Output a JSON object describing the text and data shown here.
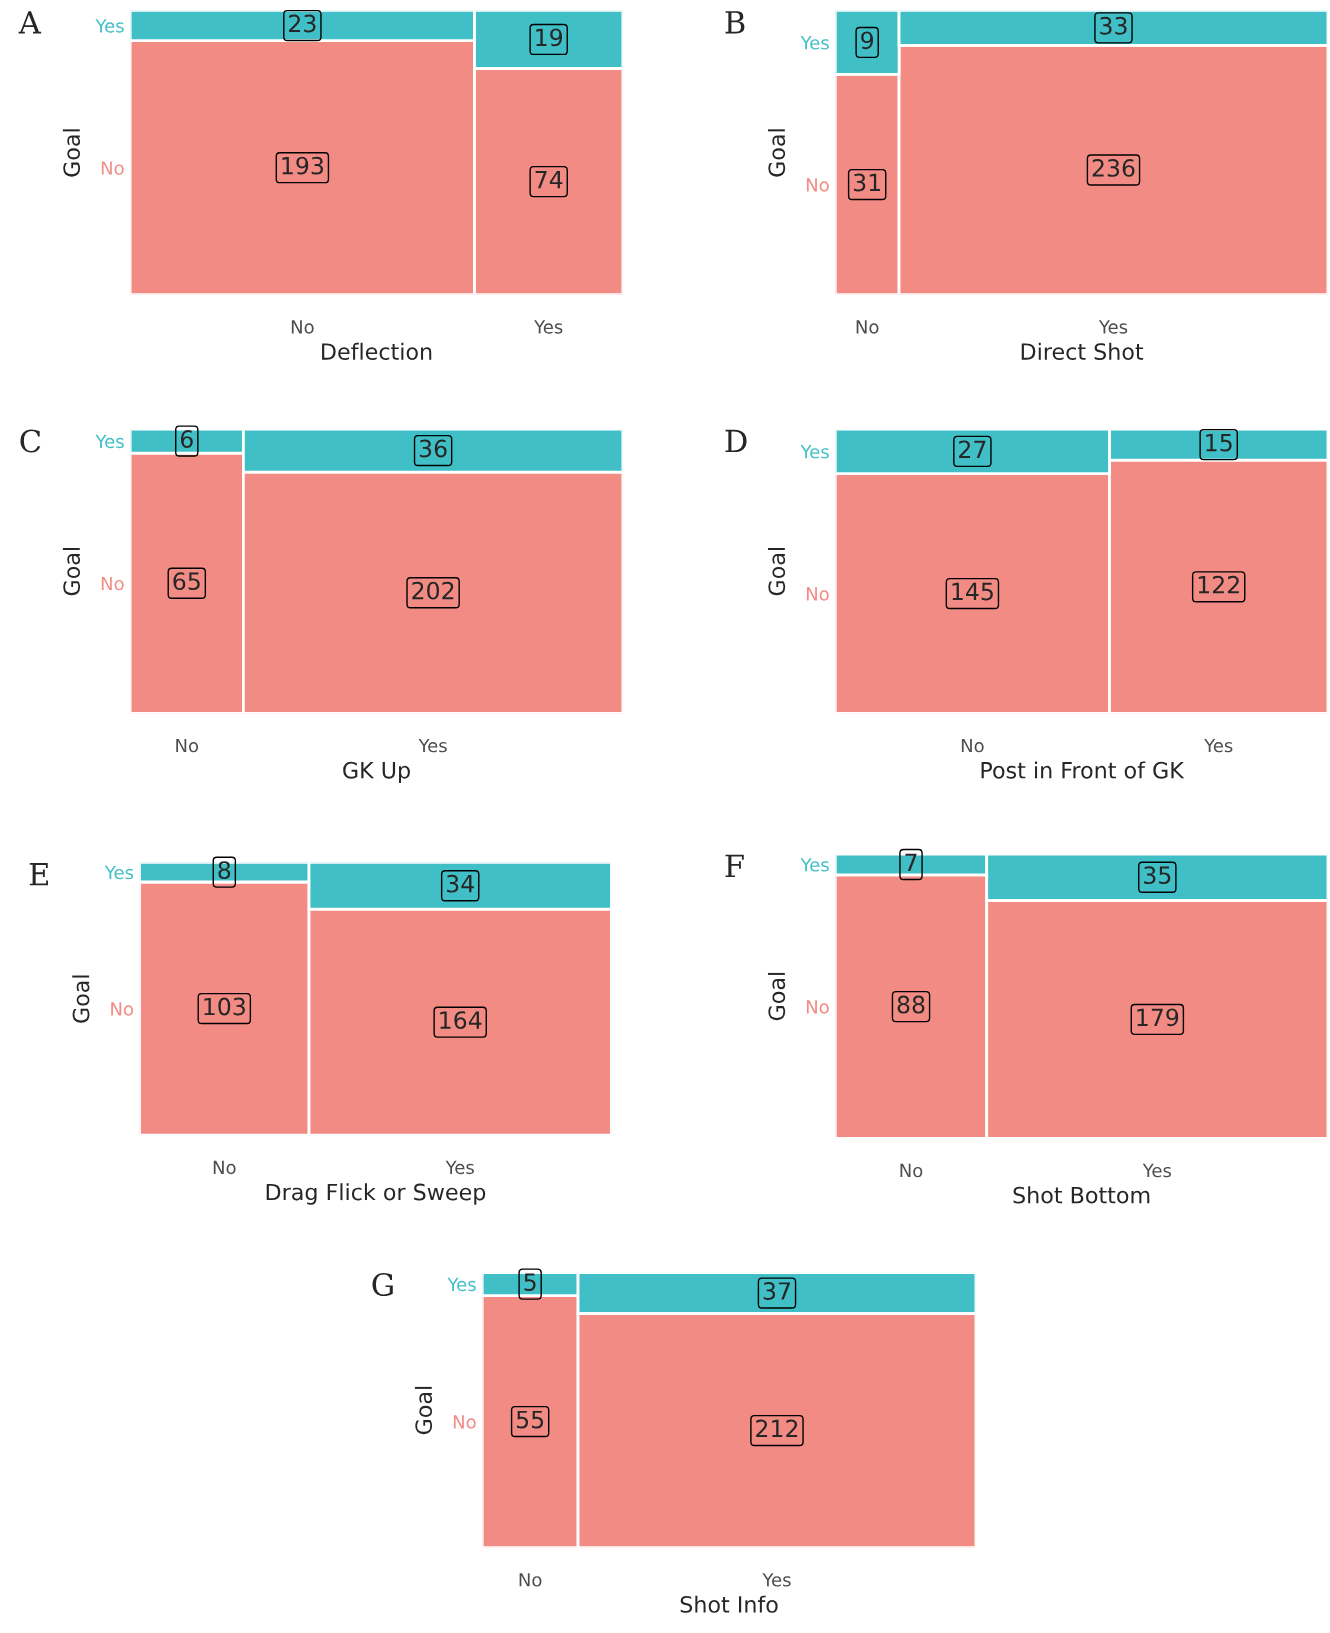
{
  "chart_data": [
    {
      "type": "other",
      "title": "A",
      "xlabel": "Deflection",
      "ylabel": "Goal",
      "categories": [
        "No",
        "Yes"
      ],
      "data_labels": true,
      "series": [
        {
          "name": "No",
          "color": "#f28b84",
          "values": [
            193,
            74
          ]
        },
        {
          "name": "Yes",
          "color": "#41bfc6",
          "values": [
            23,
            19
          ]
        }
      ]
    },
    {
      "type": "other",
      "title": "B",
      "xlabel": "Direct Shot",
      "ylabel": "Goal",
      "categories": [
        "No",
        "Yes"
      ],
      "data_labels": true,
      "series": [
        {
          "name": "No",
          "color": "#f28b84",
          "values": [
            31,
            236
          ]
        },
        {
          "name": "Yes",
          "color": "#41bfc6",
          "values": [
            9,
            33
          ]
        }
      ]
    },
    {
      "type": "other",
      "title": "C",
      "xlabel": "GK Up",
      "ylabel": "Goal",
      "categories": [
        "No",
        "Yes"
      ],
      "data_labels": true,
      "series": [
        {
          "name": "No",
          "color": "#f28b84",
          "values": [
            65,
            202
          ]
        },
        {
          "name": "Yes",
          "color": "#41bfc6",
          "values": [
            6,
            36
          ]
        }
      ]
    },
    {
      "type": "other",
      "title": "D",
      "xlabel": "Post in Front of GK",
      "ylabel": "Goal",
      "categories": [
        "No",
        "Yes"
      ],
      "data_labels": true,
      "series": [
        {
          "name": "No",
          "color": "#f28b84",
          "values": [
            145,
            122
          ]
        },
        {
          "name": "Yes",
          "color": "#41bfc6",
          "values": [
            27,
            15
          ]
        }
      ]
    },
    {
      "type": "other",
      "title": "E",
      "xlabel": "Drag Flick or Sweep",
      "ylabel": "Goal",
      "categories": [
        "No",
        "Yes"
      ],
      "data_labels": true,
      "series": [
        {
          "name": "No",
          "color": "#f28b84",
          "values": [
            103,
            164
          ]
        },
        {
          "name": "Yes",
          "color": "#41bfc6",
          "values": [
            8,
            34
          ]
        }
      ]
    },
    {
      "type": "other",
      "title": "F",
      "xlabel": "Shot Bottom",
      "ylabel": "Goal",
      "categories": [
        "No",
        "Yes"
      ],
      "data_labels": true,
      "series": [
        {
          "name": "No",
          "color": "#f28b84",
          "values": [
            88,
            179
          ]
        },
        {
          "name": "Yes",
          "color": "#41bfc6",
          "values": [
            7,
            35
          ]
        }
      ]
    },
    {
      "type": "other",
      "title": "G",
      "xlabel": "Shot Info",
      "ylabel": "Goal",
      "categories": [
        "No",
        "Yes"
      ],
      "data_labels": true,
      "series": [
        {
          "name": "No",
          "color": "#f28b84",
          "values": [
            55,
            212
          ]
        },
        {
          "name": "Yes",
          "color": "#41bfc6",
          "values": [
            5,
            37
          ]
        }
      ]
    }
  ]
}
